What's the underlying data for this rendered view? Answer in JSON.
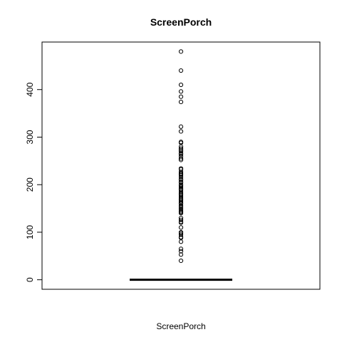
{
  "chart_data": {
    "type": "boxplot",
    "title": "ScreenPorch",
    "xlabel": "ScreenPorch",
    "ylabel": "",
    "ylim": [
      -20,
      500
    ],
    "yticks": [
      "0",
      "100",
      "200",
      "300",
      "400"
    ],
    "grid": false,
    "box": {
      "min": 0,
      "q1": 0,
      "median": 0,
      "q3": 0,
      "max": 0
    },
    "outliers": [
      480,
      440,
      410,
      396,
      385,
      374,
      322,
      312,
      290,
      288,
      280,
      276,
      273,
      270,
      266,
      264,
      260,
      255,
      252,
      234,
      232,
      227,
      224,
      222,
      220,
      216,
      212,
      210,
      206,
      204,
      200,
      198,
      195,
      192,
      190,
      189,
      185,
      182,
      180,
      178,
      175,
      172,
      170,
      168,
      165,
      162,
      160,
      156,
      153,
      150,
      147,
      144,
      142,
      140,
      130,
      126,
      122,
      120,
      110,
      100,
      98,
      95,
      90,
      88,
      80,
      65,
      60,
      53,
      40
    ],
    "colors": {
      "outlier": "#000000",
      "box": "#000000"
    }
  }
}
